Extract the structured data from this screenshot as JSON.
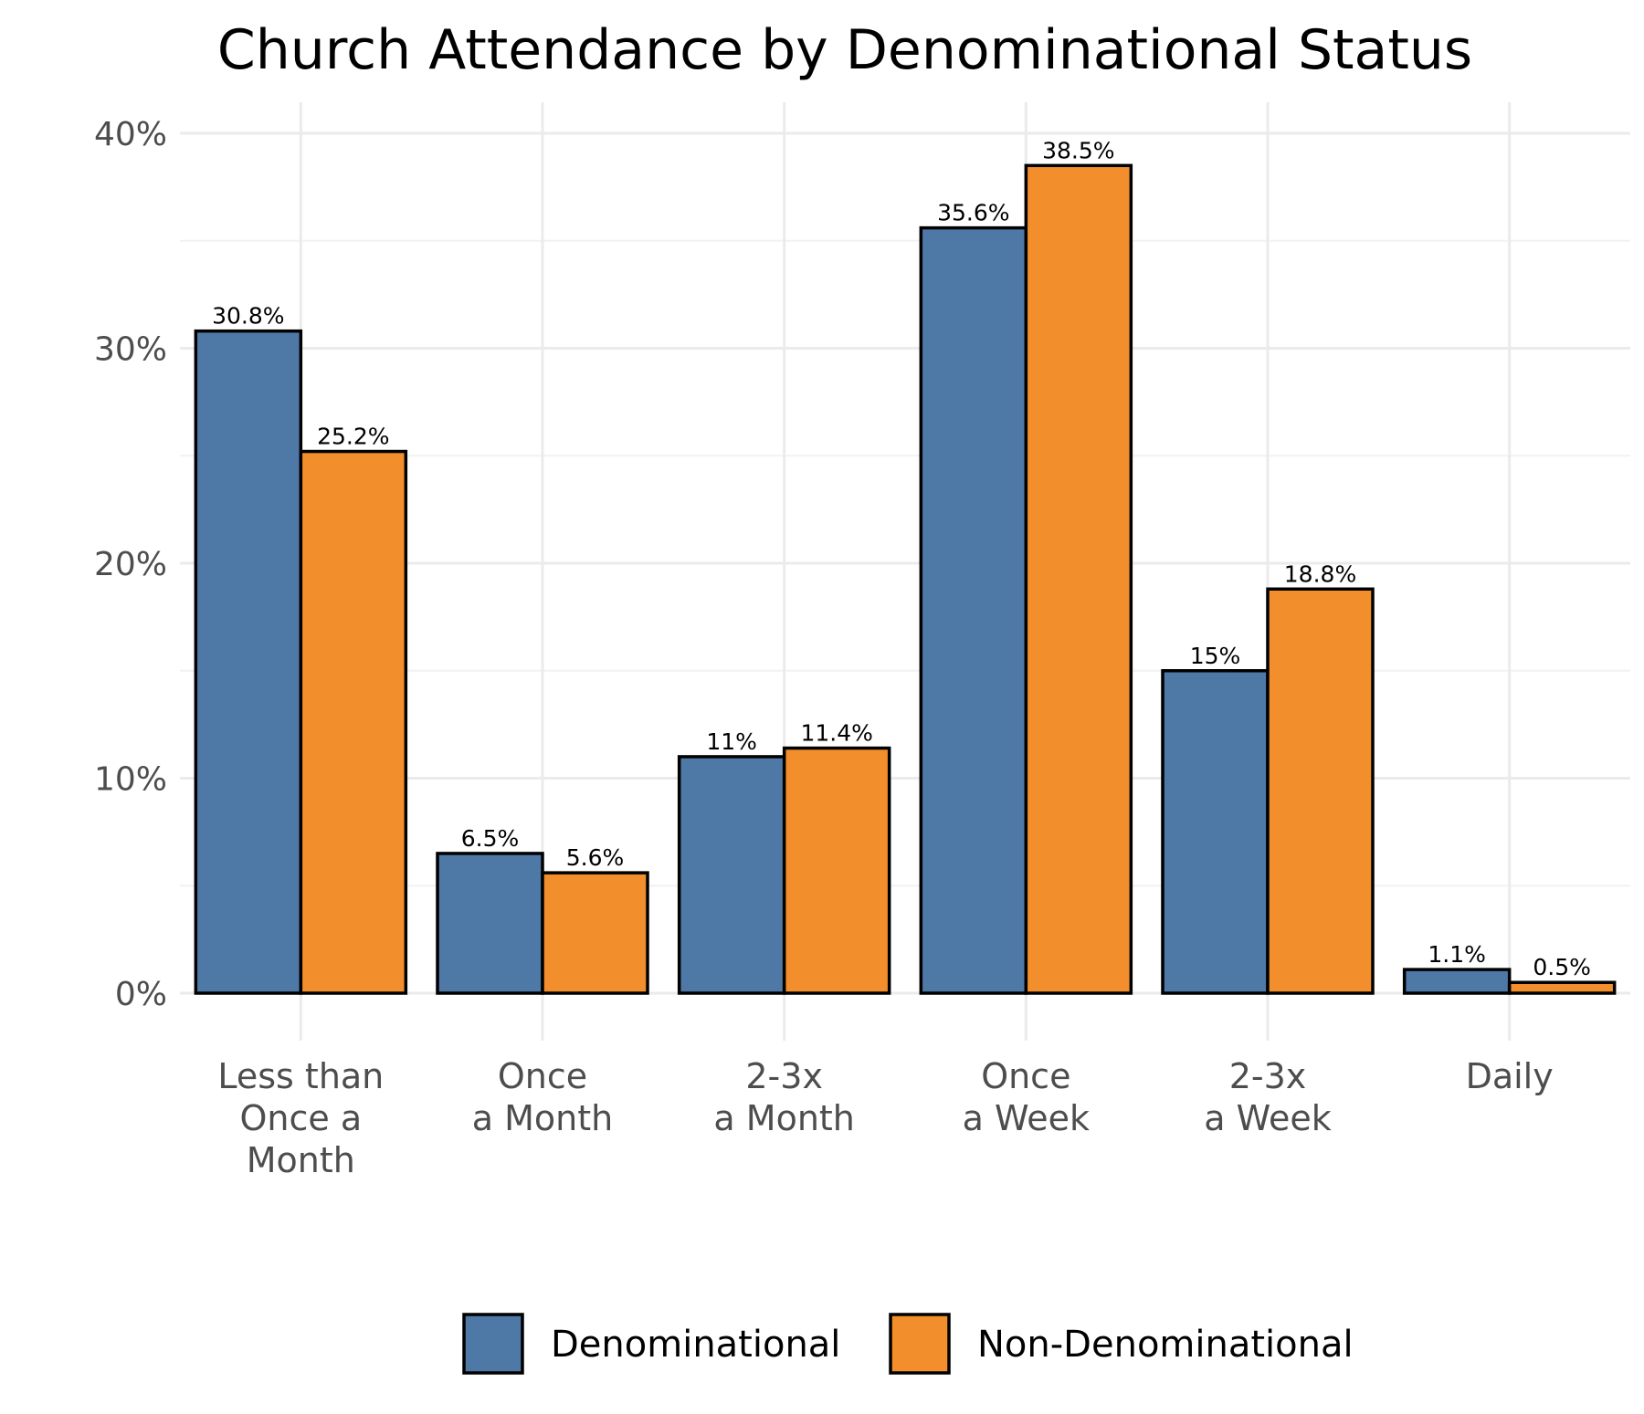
{
  "chart_data": {
    "type": "bar",
    "title": "Church Attendance by Denominational Status",
    "categories": [
      [
        "Less than",
        "Once a",
        "Month"
      ],
      [
        "Once",
        "a Month"
      ],
      [
        "2-3x",
        "a Month"
      ],
      [
        "Once",
        "a Week"
      ],
      [
        "2-3x",
        "a Week"
      ],
      [
        "Daily"
      ]
    ],
    "series": [
      {
        "name": "Denominational",
        "color": "#4e79a7",
        "values": [
          30.8,
          6.5,
          11,
          35.6,
          15,
          1.1
        ],
        "labels": [
          "30.8%",
          "6.5%",
          "11%",
          "35.6%",
          "15%",
          "1.1%"
        ]
      },
      {
        "name": "Non-Denominational",
        "color": "#f28e2b",
        "values": [
          25.2,
          5.6,
          11.4,
          38.5,
          18.8,
          0.5
        ],
        "labels": [
          "25.2%",
          "5.6%",
          "11.4%",
          "38.5%",
          "18.8%",
          "0.5%"
        ]
      }
    ],
    "yticks": [
      0,
      10,
      20,
      30,
      40
    ],
    "ytick_labels": [
      "0%",
      "10%",
      "20%",
      "30%",
      "40%"
    ],
    "ylim": [
      0,
      40
    ],
    "xlabel": "",
    "ylabel": "",
    "grid": true,
    "legend_position": "bottom"
  }
}
